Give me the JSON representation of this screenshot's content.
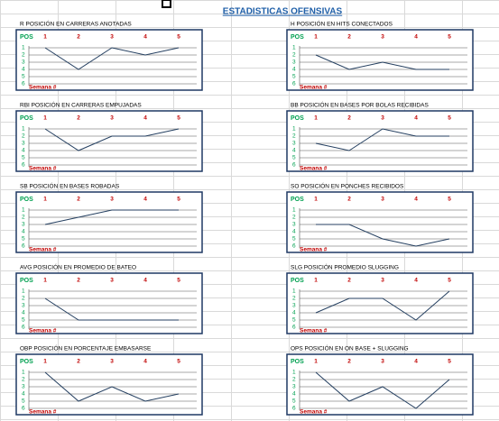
{
  "title": "ESTADISTICAS OFENSIVAS",
  "chart_data": [
    {
      "type": "line",
      "title": "R  POSICIÓN EN CARRERAS ANOTADAS",
      "y_label": "POS",
      "x_label": "Semana #",
      "categories": [
        "1",
        "2",
        "3",
        "4",
        "5"
      ],
      "values": [
        1,
        4,
        1,
        2,
        1
      ],
      "ylim": [
        1,
        6
      ],
      "yticks": [
        1,
        2,
        3,
        4,
        5,
        6
      ],
      "y_inverted": true,
      "grid": true,
      "color": "#243f60"
    },
    {
      "type": "line",
      "title": "H  POSICIÓN EN HITS CONECTADOS",
      "y_label": "POS",
      "x_label": "Semana #",
      "categories": [
        "1",
        "2",
        "3",
        "4",
        "5"
      ],
      "values": [
        2,
        4,
        3,
        4,
        4
      ],
      "ylim": [
        1,
        6
      ],
      "yticks": [
        1,
        2,
        3,
        4,
        5,
        6
      ],
      "y_inverted": true,
      "grid": true,
      "color": "#243f60"
    },
    {
      "type": "line",
      "title": "RBI  POSICIÓN EN CARRERAS EMPUJADAS",
      "y_label": "POS",
      "x_label": "Semana #",
      "categories": [
        "1",
        "2",
        "3",
        "4",
        "5"
      ],
      "values": [
        1,
        4,
        2,
        2,
        1
      ],
      "ylim": [
        1,
        6
      ],
      "yticks": [
        1,
        2,
        3,
        4,
        5,
        6
      ],
      "y_inverted": true,
      "grid": true,
      "color": "#243f60"
    },
    {
      "type": "line",
      "title": "BB  POSICIÓN EN BASES POR BOLAS RECIBIDAS",
      "y_label": "POS",
      "x_label": "Semana #",
      "categories": [
        "1",
        "2",
        "3",
        "4",
        "5"
      ],
      "values": [
        3,
        4,
        1,
        2,
        2
      ],
      "ylim": [
        1,
        6
      ],
      "yticks": [
        1,
        2,
        3,
        4,
        5,
        6
      ],
      "y_inverted": true,
      "grid": true,
      "color": "#243f60"
    },
    {
      "type": "line",
      "title": "SB  POSICIÓN EN BASES ROBADAS",
      "y_label": "POS",
      "x_label": "Semana #",
      "categories": [
        "1",
        "2",
        "3",
        "4",
        "5"
      ],
      "values": [
        3,
        2,
        1,
        1,
        1
      ],
      "ylim": [
        1,
        6
      ],
      "yticks": [
        1,
        2,
        3,
        4,
        5,
        6
      ],
      "y_inverted": true,
      "grid": true,
      "color": "#243f60"
    },
    {
      "type": "line",
      "title": "SO  POSICIÓN EN PONCHES RECIBIDOS",
      "y_label": "POS",
      "x_label": "Semana #",
      "categories": [
        "1",
        "2",
        "3",
        "4",
        "5"
      ],
      "values": [
        3,
        3,
        5,
        6,
        5
      ],
      "ylim": [
        1,
        6
      ],
      "yticks": [
        1,
        2,
        3,
        4,
        5,
        6
      ],
      "y_inverted": true,
      "grid": true,
      "color": "#243f60"
    },
    {
      "type": "line",
      "title": "AVG  POSICIÓN EN PROMEDIO DE BATEO",
      "y_label": "POS",
      "x_label": "Semana #",
      "categories": [
        "1",
        "2",
        "3",
        "4",
        "5"
      ],
      "values": [
        2,
        5,
        5,
        5,
        5
      ],
      "ylim": [
        1,
        6
      ],
      "yticks": [
        1,
        2,
        3,
        4,
        5,
        6
      ],
      "y_inverted": true,
      "grid": true,
      "color": "#243f60"
    },
    {
      "type": "line",
      "title": "SLG  POSICIÓN PROMEDIO SLUGGING",
      "y_label": "POS",
      "x_label": "Semana #",
      "categories": [
        "1",
        "2",
        "3",
        "4",
        "5"
      ],
      "values": [
        4,
        2,
        2,
        5,
        1
      ],
      "ylim": [
        1,
        6
      ],
      "yticks": [
        1,
        2,
        3,
        4,
        5,
        6
      ],
      "y_inverted": true,
      "grid": true,
      "color": "#243f60"
    },
    {
      "type": "line",
      "title": "OBP  POSICIÓN EN PORCENTAJE EMBASARSE",
      "y_label": "POS",
      "x_label": "Semana #",
      "categories": [
        "1",
        "2",
        "3",
        "4",
        "5"
      ],
      "values": [
        1,
        5,
        3,
        5,
        4
      ],
      "ylim": [
        1,
        6
      ],
      "yticks": [
        1,
        2,
        3,
        4,
        5,
        6
      ],
      "y_inverted": true,
      "grid": true,
      "color": "#243f60"
    },
    {
      "type": "line",
      "title": "OPS  POSICIÓN EN ON BASE + SLUGGING",
      "y_label": "POS",
      "x_label": "Semana #",
      "categories": [
        "1",
        "2",
        "3",
        "4",
        "5"
      ],
      "values": [
        1,
        5,
        3,
        6,
        2
      ],
      "ylim": [
        1,
        6
      ],
      "yticks": [
        1,
        2,
        3,
        4,
        5,
        6
      ],
      "y_inverted": true,
      "grid": true,
      "color": "#243f60"
    }
  ]
}
